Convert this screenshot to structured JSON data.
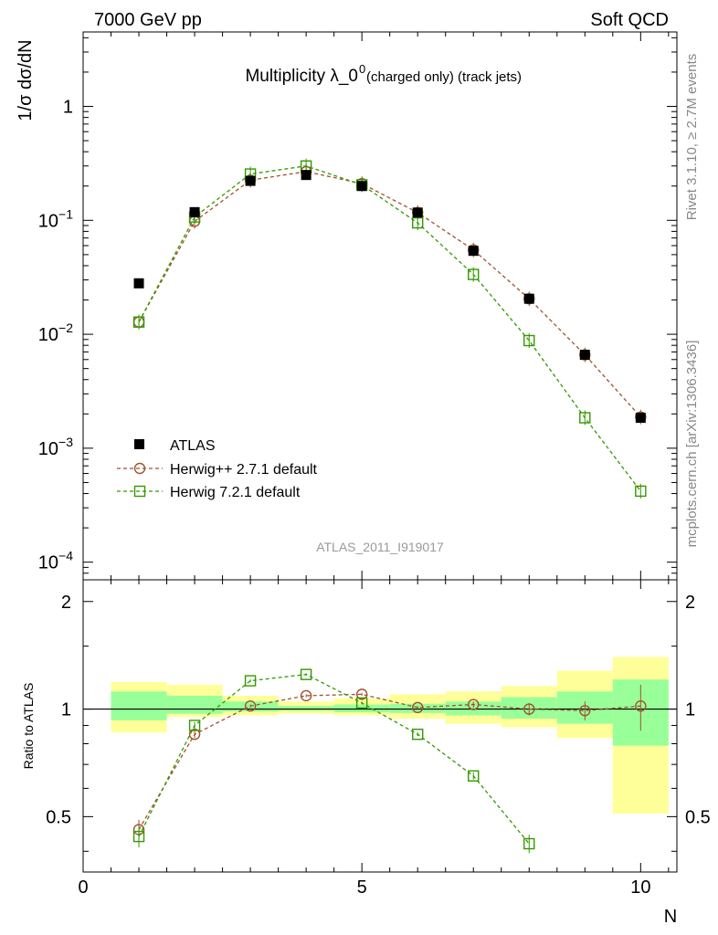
{
  "header": {
    "left": "7000 GeV pp",
    "right": "Soft QCD"
  },
  "side_labels": {
    "rivet": "Rivet 3.1.10, ≥ 2.7M events",
    "mcplots": "mcplots.cern.ch [arXiv:1306.3436]"
  },
  "chart_data": {
    "type": "scatter",
    "title_main": "Multiplicity λ_0",
    "title_sup": "0",
    "title_sub": " (charged only) (track jets)",
    "watermark": "ATLAS_2011_I919017",
    "ylabel": "1/σ dσ/dN",
    "xlabel": "N",
    "ratio_ylabel": "Ratio to ATLAS",
    "xlim": [
      0,
      10.65
    ],
    "ylim": [
      7e-05,
      4.5
    ],
    "yscale": "log",
    "ratio_ylim": [
      0.35,
      2.3
    ],
    "ratio_yscale": "log",
    "x_ticks": [
      {
        "value": 0,
        "label": "0"
      },
      {
        "value": 5,
        "label": "5"
      },
      {
        "value": 10,
        "label": "10"
      }
    ],
    "y_ticks": [
      {
        "value": 0.0001,
        "base": "10",
        "exp": "−4"
      },
      {
        "value": 0.001,
        "base": "10",
        "exp": "−3"
      },
      {
        "value": 0.01,
        "base": "10",
        "exp": "−2"
      },
      {
        "value": 0.1,
        "base": "10",
        "exp": "−1"
      },
      {
        "value": 1,
        "base": "1",
        "exp": ""
      }
    ],
    "ratio_ticks": [
      {
        "value": 0.5,
        "label": "0.5"
      },
      {
        "value": 1,
        "label": "1"
      },
      {
        "value": 2,
        "label": "2"
      }
    ],
    "x": [
      1,
      2,
      3,
      4,
      5,
      6,
      7,
      8,
      9,
      10
    ],
    "data_series": {
      "name": "ATLAS",
      "values": [
        0.028,
        0.118,
        0.222,
        0.25,
        0.2,
        0.117,
        0.054,
        0.0205,
        0.0066,
        0.00185
      ]
    },
    "series": [
      {
        "name": "Herwig++ 2.7.1 default",
        "color": "#a0522d",
        "marker": "circle",
        "values": [
          0.0128,
          0.098,
          0.225,
          0.268,
          0.21,
          0.117,
          0.055,
          0.0205,
          0.0066,
          0.00188
        ],
        "ratio": [
          0.46,
          0.85,
          1.02,
          1.09,
          1.1,
          1.01,
          1.03,
          1.0,
          0.99,
          1.02
        ],
        "ratio_err": [
          0.03,
          0.02,
          0.01,
          0.01,
          0.01,
          0.01,
          0.02,
          0.04,
          0.06,
          0.15
        ]
      },
      {
        "name": "Herwig 7.2.1 default",
        "color": "#339900",
        "marker": "square",
        "values": [
          0.0128,
          0.107,
          0.255,
          0.3,
          0.205,
          0.095,
          0.0335,
          0.0088,
          0.00185,
          0.00042
        ],
        "ratio": [
          0.44,
          0.9,
          1.2,
          1.25,
          1.04,
          0.85,
          0.65,
          0.42
        ],
        "ratio_err": [
          0.03,
          0.02,
          0.01,
          0.01,
          0.01,
          0.01,
          0.015,
          0.025
        ]
      }
    ],
    "uncertainty_bands": [
      {
        "xmin": 0.5,
        "xmax": 1.5,
        "stat_lo": 0.93,
        "stat_hi": 1.12,
        "tot_lo": 0.86,
        "tot_hi": 1.19
      },
      {
        "xmin": 1.5,
        "xmax": 2.5,
        "stat_lo": 0.97,
        "stat_hi": 1.09,
        "tot_lo": 0.95,
        "tot_hi": 1.17
      },
      {
        "xmin": 2.5,
        "xmax": 3.5,
        "stat_lo": 0.985,
        "stat_hi": 1.05,
        "tot_lo": 0.96,
        "tot_hi": 1.09
      },
      {
        "xmin": 3.5,
        "xmax": 4.5,
        "stat_lo": 0.99,
        "stat_hi": 1.02,
        "tot_lo": 0.97,
        "tot_hi": 1.05
      },
      {
        "xmin": 4.5,
        "xmax": 5.5,
        "stat_lo": 0.98,
        "stat_hi": 1.03,
        "tot_lo": 0.96,
        "tot_hi": 1.07
      },
      {
        "xmin": 5.5,
        "xmax": 6.5,
        "stat_lo": 0.975,
        "stat_hi": 1.035,
        "tot_lo": 0.94,
        "tot_hi": 1.1
      },
      {
        "xmin": 6.5,
        "xmax": 7.5,
        "stat_lo": 0.96,
        "stat_hi": 1.05,
        "tot_lo": 0.91,
        "tot_hi": 1.12
      },
      {
        "xmin": 7.5,
        "xmax": 8.5,
        "stat_lo": 0.94,
        "stat_hi": 1.08,
        "tot_lo": 0.89,
        "tot_hi": 1.16
      },
      {
        "xmin": 8.5,
        "xmax": 9.5,
        "stat_lo": 0.91,
        "stat_hi": 1.12,
        "tot_lo": 0.83,
        "tot_hi": 1.28
      },
      {
        "xmin": 9.5,
        "xmax": 10.5,
        "stat_lo": 0.79,
        "stat_hi": 1.21,
        "tot_lo": 0.51,
        "tot_hi": 1.4
      }
    ],
    "colors": {
      "stat_band": "#99ff99",
      "total_band": "#ffff99",
      "data": "#000000"
    }
  }
}
